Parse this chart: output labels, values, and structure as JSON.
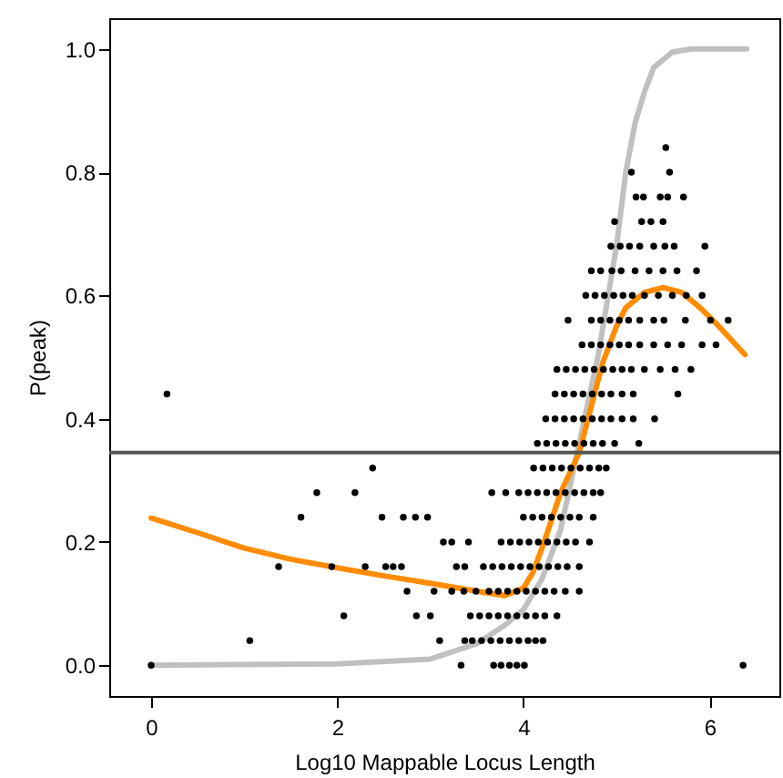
{
  "chart_data": {
    "type": "scatter",
    "xlabel": "Log10 Mappable Locus Length",
    "ylabel": "P(peak)",
    "xlim": [
      -0.45,
      6.75
    ],
    "xticks": [
      0,
      2,
      4,
      6
    ],
    "ylim": [
      -0.05,
      1.05
    ],
    "yticks": [
      {
        "value": 0,
        "label": "0.0"
      },
      0.2,
      0.4,
      0.6,
      0.8,
      {
        "value": 1,
        "label": "1.0"
      }
    ],
    "marker": "circle",
    "grid": false,
    "ref_lines": [
      {
        "axis": "y",
        "value": 0.345,
        "color": "#555555"
      }
    ],
    "series": [
      {
        "type": "scatter",
        "color": "#000000",
        "x": [
          0,
          3.33,
          3.68,
          3.76,
          3.85,
          3.93,
          4.01,
          6.36
        ],
        "values": [
          0,
          0,
          0,
          0,
          0,
          0,
          0,
          0
        ]
      },
      {
        "type": "scatter",
        "color": "#000000",
        "x": [
          1.06,
          3.1,
          3.37,
          3.45,
          3.55,
          3.65,
          3.75,
          3.85,
          3.95,
          4.05,
          4.13,
          4.21
        ],
        "values": [
          0.04,
          0.04,
          0.04,
          0.04,
          0.04,
          0.04,
          0.04,
          0.04,
          0.04,
          0.04,
          0.04,
          0.04
        ]
      },
      {
        "type": "scatter",
        "color": "#000000",
        "x": [
          2.07,
          2.85,
          3.0,
          3.43,
          3.53,
          3.63,
          3.73,
          3.83,
          3.93,
          4.03,
          4.13,
          4.23,
          4.36
        ],
        "values": [
          0.08,
          0.08,
          0.08,
          0.08,
          0.08,
          0.08,
          0.08,
          0.08,
          0.08,
          0.08,
          0.08,
          0.08,
          0.08
        ]
      },
      {
        "type": "scatter",
        "color": "#000000",
        "x": [
          2.75,
          3.04,
          3.23,
          3.36,
          3.49,
          3.63,
          3.73,
          3.83,
          3.93,
          4.03,
          4.13,
          4.23,
          4.33,
          4.45,
          4.6
        ],
        "values": [
          0.12,
          0.12,
          0.12,
          0.12,
          0.12,
          0.12,
          0.12,
          0.12,
          0.12,
          0.12,
          0.12,
          0.12,
          0.12,
          0.12,
          0.12
        ]
      },
      {
        "type": "scatter",
        "color": "#000000",
        "x": [
          1.37,
          1.94,
          2.3,
          2.52,
          2.6,
          2.69,
          3.28,
          3.37,
          3.57,
          3.67,
          3.77,
          3.87,
          3.97,
          4.07,
          4.17,
          4.27,
          4.37,
          4.47,
          4.6
        ],
        "values": [
          0.16,
          0.16,
          0.16,
          0.16,
          0.16,
          0.16,
          0.16,
          0.16,
          0.16,
          0.16,
          0.16,
          0.16,
          0.16,
          0.16,
          0.16,
          0.16,
          0.16,
          0.16,
          0.16
        ]
      },
      {
        "type": "scatter",
        "color": "#000000",
        "x": [
          3.14,
          3.23,
          3.41,
          3.76,
          3.86,
          3.96,
          4.06,
          4.16,
          4.26,
          4.36,
          4.46,
          4.56,
          4.71
        ],
        "values": [
          0.2,
          0.2,
          0.2,
          0.2,
          0.2,
          0.2,
          0.2,
          0.2,
          0.2,
          0.2,
          0.2,
          0.2,
          0.2
        ]
      },
      {
        "type": "scatter",
        "color": "#000000",
        "x": [
          1.61,
          2.48,
          2.71,
          2.84,
          2.97,
          4.0,
          4.1,
          4.2,
          4.3,
          4.4,
          4.5,
          4.6,
          4.75
        ],
        "values": [
          0.24,
          0.24,
          0.24,
          0.24,
          0.24,
          0.24,
          0.24,
          0.24,
          0.24,
          0.24,
          0.24,
          0.24,
          0.24
        ]
      },
      {
        "type": "scatter",
        "color": "#000000",
        "x": [
          1.78,
          2.19,
          3.66,
          3.81,
          3.95,
          4.05,
          4.15,
          4.25,
          4.35,
          4.45,
          4.55,
          4.65,
          4.75,
          4.83
        ],
        "values": [
          0.28,
          0.28,
          0.28,
          0.28,
          0.28,
          0.28,
          0.28,
          0.28,
          0.28,
          0.28,
          0.28,
          0.28,
          0.28,
          0.28
        ]
      },
      {
        "type": "scatter",
        "color": "#000000",
        "x": [
          2.38,
          4.11,
          4.21,
          4.31,
          4.41,
          4.51,
          4.61,
          4.71,
          4.81,
          4.89
        ],
        "values": [
          0.32,
          0.32,
          0.32,
          0.32,
          0.32,
          0.32,
          0.32,
          0.32,
          0.32,
          0.32
        ]
      },
      {
        "type": "scatter",
        "color": "#000000",
        "x": [
          4.15,
          4.25,
          4.35,
          4.45,
          4.55,
          4.65,
          4.75,
          4.85,
          4.98,
          5.24
        ],
        "values": [
          0.36,
          0.36,
          0.36,
          0.36,
          0.36,
          0.36,
          0.36,
          0.36,
          0.36,
          0.36
        ]
      },
      {
        "type": "scatter",
        "color": "#000000",
        "x": [
          4.24,
          4.34,
          4.44,
          4.54,
          4.64,
          4.74,
          4.84,
          4.94,
          5.06,
          5.18,
          5.41
        ],
        "values": [
          0.4,
          0.4,
          0.4,
          0.4,
          0.4,
          0.4,
          0.4,
          0.4,
          0.4,
          0.4,
          0.4
        ]
      },
      {
        "type": "scatter",
        "color": "#000000",
        "x": [
          0.17,
          4.34,
          4.44,
          4.54,
          4.64,
          4.74,
          4.84,
          4.94,
          5.06,
          5.18,
          5.66
        ],
        "values": [
          0.44,
          0.44,
          0.44,
          0.44,
          0.44,
          0.44,
          0.44,
          0.44,
          0.44,
          0.44,
          0.44
        ]
      },
      {
        "type": "scatter",
        "color": "#000000",
        "x": [
          4.36,
          4.46,
          4.56,
          4.66,
          4.76,
          4.86,
          4.96,
          5.06,
          5.16,
          5.3,
          5.47,
          5.63,
          5.8
        ],
        "values": [
          0.48,
          0.48,
          0.48,
          0.48,
          0.48,
          0.48,
          0.48,
          0.48,
          0.48,
          0.48,
          0.48,
          0.48,
          0.48
        ]
      },
      {
        "type": "scatter",
        "color": "#000000",
        "x": [
          4.63,
          4.73,
          4.83,
          4.93,
          5.03,
          5.13,
          5.25,
          5.4,
          5.55,
          5.7,
          5.92,
          6.07
        ],
        "values": [
          0.52,
          0.52,
          0.52,
          0.52,
          0.52,
          0.52,
          0.52,
          0.52,
          0.52,
          0.52,
          0.52,
          0.52
        ]
      },
      {
        "type": "scatter",
        "color": "#000000",
        "x": [
          4.48,
          4.73,
          4.83,
          4.93,
          5.03,
          5.13,
          5.25,
          5.4,
          5.51,
          5.74,
          6.01,
          6.2
        ],
        "values": [
          0.56,
          0.56,
          0.56,
          0.56,
          0.56,
          0.56,
          0.56,
          0.56,
          0.56,
          0.56,
          0.56,
          0.56
        ]
      },
      {
        "type": "scatter",
        "color": "#000000",
        "x": [
          4.67,
          4.77,
          4.87,
          4.97,
          5.07,
          5.17,
          5.3,
          5.45,
          5.6,
          5.75,
          5.92
        ],
        "values": [
          0.6,
          0.6,
          0.6,
          0.6,
          0.6,
          0.6,
          0.6,
          0.6,
          0.6,
          0.6,
          0.6
        ]
      },
      {
        "type": "scatter",
        "color": "#000000",
        "x": [
          4.73,
          4.83,
          4.95,
          5.05,
          5.2,
          5.35,
          5.5,
          5.65,
          5.86
        ],
        "values": [
          0.64,
          0.64,
          0.64,
          0.64,
          0.64,
          0.64,
          0.64,
          0.64,
          0.64
        ]
      },
      {
        "type": "scatter",
        "color": "#000000",
        "x": [
          4.94,
          5.04,
          5.14,
          5.25,
          5.4,
          5.52,
          5.62,
          5.95
        ],
        "values": [
          0.68,
          0.68,
          0.68,
          0.68,
          0.68,
          0.68,
          0.68,
          0.68
        ]
      },
      {
        "type": "scatter",
        "color": "#000000",
        "x": [
          4.98,
          5.27,
          5.37,
          5.5
        ],
        "values": [
          0.72,
          0.72,
          0.72,
          0.72
        ]
      },
      {
        "type": "scatter",
        "color": "#000000",
        "x": [
          5.21,
          5.29,
          5.47,
          5.55,
          5.72
        ],
        "values": [
          0.76,
          0.76,
          0.76,
          0.76,
          0.76
        ]
      },
      {
        "type": "scatter",
        "color": "#000000",
        "x": [
          5.16,
          5.57
        ],
        "values": [
          0.8,
          0.8
        ]
      },
      {
        "type": "scatter",
        "color": "#000000",
        "x": [
          5.53
        ],
        "values": [
          0.84
        ]
      },
      {
        "type": "line",
        "color": "#c0c0c0",
        "marker": "none",
        "x": [
          0,
          2,
          3,
          3.5,
          3.8,
          4.0,
          4.2,
          4.4,
          4.6,
          4.8,
          5.0,
          5.1,
          5.2,
          5.3,
          5.4,
          5.6,
          5.8,
          6.4
        ],
        "values": [
          0,
          0.002,
          0.01,
          0.035,
          0.065,
          0.09,
          0.14,
          0.22,
          0.36,
          0.5,
          0.68,
          0.8,
          0.88,
          0.93,
          0.97,
          0.995,
          1.0,
          1.0
        ]
      },
      {
        "type": "line",
        "color": "#ff8c00",
        "marker": "none",
        "x": [
          0,
          0.5,
          1,
          1.5,
          2,
          2.5,
          3,
          3.5,
          3.8,
          4.0,
          4.1,
          4.2,
          4.4,
          4.6,
          4.85,
          5.0,
          5.1,
          5.3,
          5.5,
          5.7,
          5.9,
          6.1,
          6.38
        ],
        "values": [
          0.239,
          0.215,
          0.19,
          0.172,
          0.158,
          0.145,
          0.133,
          0.12,
          0.113,
          0.125,
          0.15,
          0.19,
          0.28,
          0.345,
          0.49,
          0.55,
          0.58,
          0.605,
          0.613,
          0.605,
          0.58,
          0.55,
          0.504
        ]
      }
    ]
  }
}
